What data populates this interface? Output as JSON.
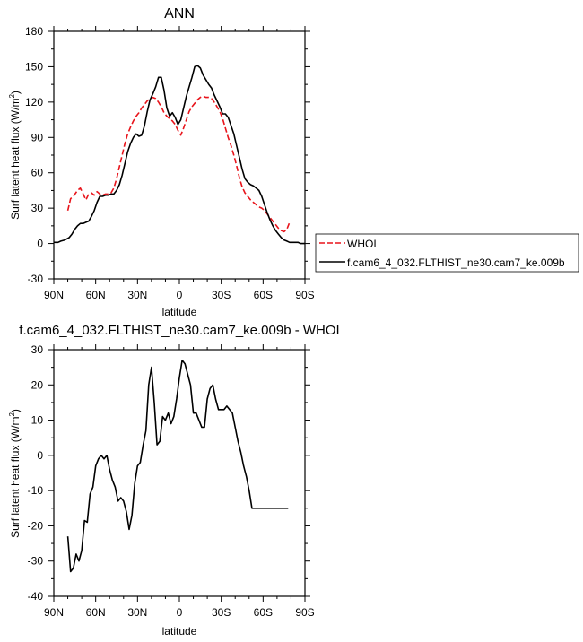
{
  "chart_data": [
    {
      "type": "line",
      "title": "ANN",
      "xlabel": "latitude",
      "ylabel": "Surf latent heat flux (W/m",
      "ylabel_sup": "2",
      "ylabel_close": ")",
      "xlim": [
        90,
        -90
      ],
      "ylim": [
        -30,
        180
      ],
      "xticks": [
        90,
        60,
        30,
        0,
        -30,
        -60,
        -90
      ],
      "xtick_labels": [
        "90N",
        "60N",
        "30N",
        "0",
        "30S",
        "60S",
        "90S"
      ],
      "yticks": [
        -30,
        0,
        30,
        60,
        90,
        120,
        150,
        180
      ],
      "ytick_labels": [
        "-30",
        "0",
        "30",
        "60",
        "90",
        "120",
        "150",
        "180"
      ],
      "legend_position": "right",
      "series": [
        {
          "name": "WHOI",
          "color": "#e8141b",
          "dash": "dashed",
          "x": [
            80,
            78,
            76,
            73,
            71,
            69,
            67,
            65,
            63,
            61,
            59,
            57,
            55,
            53,
            51,
            49,
            47,
            45,
            43,
            41,
            39,
            37,
            35,
            33,
            31,
            29,
            27,
            25,
            23,
            21,
            19,
            17,
            15,
            13,
            11,
            9,
            7,
            5,
            3,
            1,
            -1,
            -3,
            -5,
            -7,
            -9,
            -11,
            -13,
            -15,
            -17,
            -19,
            -21,
            -23,
            -25,
            -27,
            -29,
            -31,
            -33,
            -35,
            -37,
            -39,
            -41,
            -43,
            -45,
            -47,
            -49,
            -51,
            -53,
            -55,
            -57,
            -59,
            -61,
            -63,
            -65,
            -67,
            -69,
            -71,
            -73,
            -75,
            -77,
            -79
          ],
          "y": [
            28,
            38,
            40,
            45,
            47,
            42,
            37,
            42,
            43,
            41,
            44,
            42,
            41,
            42,
            42,
            43,
            47,
            55,
            65,
            75,
            85,
            93,
            99,
            104,
            108,
            111,
            115,
            118,
            121,
            123,
            124,
            123,
            120,
            116,
            111,
            108,
            106,
            104,
            101,
            96,
            92,
            98,
            105,
            112,
            116,
            119,
            122,
            124,
            125,
            124,
            124,
            123,
            120,
            116,
            112,
            106,
            98,
            90,
            83,
            75,
            66,
            56,
            48,
            43,
            40,
            37,
            35,
            33,
            31,
            30,
            28,
            25,
            22,
            19,
            16,
            13,
            11,
            10,
            12,
            18
          ]
        },
        {
          "name": "f.cam6_4_032.FLTHIST_ne30.cam7_ke.009b",
          "color": "#000000",
          "dash": "solid",
          "x": [
            90,
            87,
            85,
            82,
            79,
            77,
            75,
            73,
            71,
            69,
            67,
            65,
            63,
            61,
            59,
            57,
            55,
            53,
            51,
            49,
            47,
            45,
            43,
            41,
            39,
            37,
            35,
            33,
            31,
            29,
            27,
            25,
            23,
            21,
            19,
            17,
            15,
            13,
            11,
            9,
            7,
            5,
            3,
            1,
            -1,
            -3,
            -5,
            -7,
            -9,
            -11,
            -13,
            -15,
            -17,
            -19,
            -21,
            -23,
            -25,
            -27,
            -29,
            -31,
            -33,
            -35,
            -37,
            -39,
            -41,
            -43,
            -45,
            -47,
            -49,
            -51,
            -53,
            -55,
            -57,
            -59,
            -61,
            -63,
            -65,
            -67,
            -69,
            -71,
            -73,
            -75,
            -77,
            -79,
            -81,
            -83,
            -85,
            -87,
            -90
          ],
          "y": [
            1,
            1,
            2,
            3,
            5,
            8,
            12,
            15,
            17,
            17,
            18,
            19,
            23,
            28,
            35,
            40,
            40,
            41,
            41,
            42,
            42,
            45,
            50,
            58,
            68,
            78,
            85,
            90,
            93,
            91,
            92,
            100,
            112,
            122,
            127,
            133,
            141,
            141,
            130,
            115,
            108,
            111,
            107,
            101,
            105,
            115,
            125,
            133,
            141,
            150,
            151,
            149,
            143,
            139,
            135,
            132,
            126,
            121,
            116,
            110,
            110,
            107,
            100,
            93,
            83,
            73,
            63,
            55,
            52,
            50,
            49,
            47,
            45,
            40,
            33,
            26,
            20,
            15,
            11,
            8,
            5,
            3,
            2,
            1,
            1,
            1,
            1,
            0,
            0
          ]
        }
      ]
    },
    {
      "type": "line",
      "title": "f.cam6_4_032.FLTHIST_ne30.cam7_ke.009b - WHOI",
      "xlabel": "latitude",
      "ylabel": "Surf latent heat flux (W/m",
      "ylabel_sup": "2",
      "ylabel_close": ")",
      "xlim": [
        90,
        -90
      ],
      "ylim": [
        -40,
        30
      ],
      "xticks": [
        90,
        60,
        30,
        0,
        -30,
        -60,
        -90
      ],
      "xtick_labels": [
        "90N",
        "60N",
        "30N",
        "0",
        "30S",
        "60S",
        "90S"
      ],
      "yticks": [
        -40,
        -30,
        -20,
        -10,
        0,
        10,
        20,
        30
      ],
      "ytick_labels": [
        "-40",
        "-30",
        "-20",
        "-10",
        "0",
        "10",
        "20",
        "30"
      ],
      "series": [
        {
          "color": "#000000",
          "dash": "solid",
          "x": [
            80,
            78,
            76,
            74,
            72,
            70,
            68,
            66,
            64,
            62,
            60,
            58,
            56,
            54,
            52,
            50,
            48,
            46,
            44,
            42,
            40,
            38,
            36,
            34,
            32,
            30,
            28,
            26,
            24,
            22,
            20,
            18,
            16,
            14,
            12,
            10,
            8,
            6,
            4,
            2,
            0,
            -2,
            -4,
            -6,
            -8,
            -10,
            -12,
            -14,
            -16,
            -18,
            -20,
            -22,
            -24,
            -26,
            -28,
            -30,
            -32,
            -34,
            -36,
            -38,
            -40,
            -42,
            -44,
            -46,
            -48,
            -50,
            -52,
            -54,
            -56,
            -58,
            -60,
            -62,
            -64,
            -66,
            -68,
            -70,
            -72,
            -74,
            -76,
            -78
          ],
          "y": [
            -23,
            -33,
            -32,
            -28,
            -30,
            -27,
            -18.5,
            -19,
            -11,
            -9,
            -3,
            -1,
            0,
            -1,
            0,
            -4,
            -7,
            -9,
            -13,
            -12,
            -13,
            -16,
            -21,
            -17,
            -8,
            -3,
            -2,
            3,
            7,
            20,
            25,
            15,
            3,
            4,
            11,
            10,
            12,
            9,
            11,
            16,
            22,
            27,
            26,
            23,
            20,
            12,
            12,
            10,
            8,
            8,
            16,
            19,
            20,
            16,
            13,
            13,
            13,
            14,
            13,
            12,
            8,
            4,
            1,
            -3,
            -6,
            -10,
            -15,
            -15,
            -15,
            -15,
            -15,
            -15,
            -15,
            -15,
            -15,
            -15,
            -15,
            -15,
            -15,
            -15
          ]
        }
      ]
    }
  ]
}
